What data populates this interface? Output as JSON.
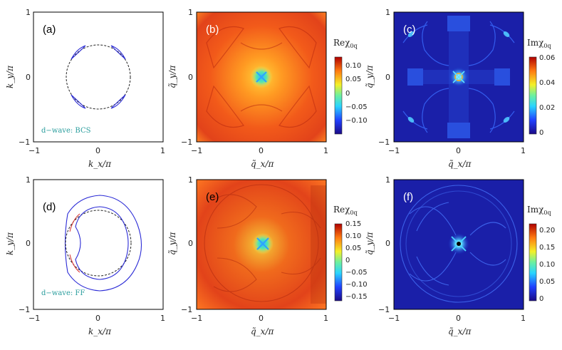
{
  "panels": {
    "a": {
      "label": "(a)",
      "note": "d−wave: BCS",
      "xlabel": "k_x/π",
      "ylabel": "k_y/π",
      "xticks": [
        "−1",
        "0",
        "1"
      ],
      "yticks": [
        "1",
        "0",
        "−1"
      ]
    },
    "b": {
      "label": "(b)",
      "xlabel": "q̃_x/π",
      "ylabel": "q̃_y/π",
      "xticks": [
        "−1",
        "0",
        "1"
      ],
      "yticks": [
        "1",
        "0",
        "−1"
      ],
      "colorbar": {
        "title": "Reχ",
        "subscript": "0q",
        "ticks": [
          "0.10",
          "0.05",
          "0",
          "−0.05",
          "−0.10"
        ]
      }
    },
    "c": {
      "label": "(c)",
      "xlabel": "q̃_x/π",
      "ylabel": "q̃_y/π",
      "xticks": [
        "−1",
        "0",
        "1"
      ],
      "yticks": [
        "1",
        "0",
        "−1"
      ],
      "colorbar": {
        "title": "Imχ",
        "subscript": "0q",
        "ticks": [
          "0.06",
          "0.04",
          "0.02",
          "0"
        ]
      }
    },
    "d": {
      "label": "(d)",
      "note": "d−wave: FF",
      "xlabel": "k_x/π",
      "ylabel": "k_y/π",
      "xticks": [
        "−1",
        "0",
        "1"
      ],
      "yticks": [
        "1",
        "0",
        "−1"
      ]
    },
    "e": {
      "label": "(e)",
      "xlabel": "q̃_x/π",
      "ylabel": "q̃_y/π",
      "xticks": [
        "−1",
        "0",
        "1"
      ],
      "yticks": [
        "1",
        "0",
        "−1"
      ],
      "colorbar": {
        "title": "Reχ",
        "subscript": "0q",
        "ticks": [
          "0.15",
          "0.10",
          "0.05",
          "0",
          "−0.05",
          "−0.10",
          "−0.15"
        ]
      }
    },
    "f": {
      "label": "(f)",
      "xlabel": "q̃_x/π",
      "ylabel": "q̃_y/π",
      "xticks": [
        "−1",
        "0",
        "1"
      ],
      "yticks": [
        "1",
        "0",
        "−1"
      ],
      "colorbar": {
        "title": "Imχ",
        "subscript": "0q",
        "ticks": [
          "0.20",
          "0.15",
          "0.10",
          "0.05",
          "0"
        ]
      }
    }
  },
  "colors": {
    "fermi_surface": "#2b2bd6",
    "dashed_circle": "#222222",
    "pairing_red": "#d42a2a",
    "note_teal": "#2a9d9d"
  }
}
